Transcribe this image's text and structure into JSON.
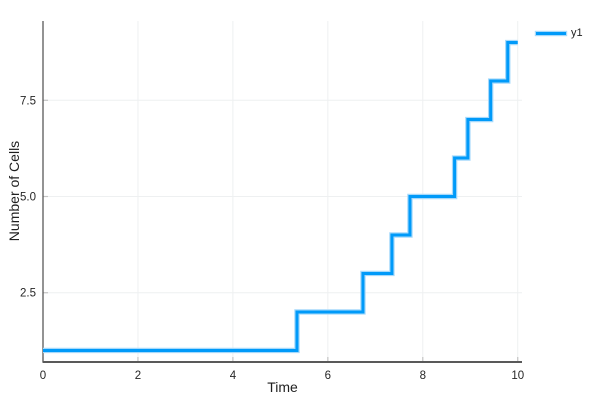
{
  "chart_data": {
    "type": "line",
    "subtype": "step-post",
    "title": "",
    "xlabel": "Time",
    "ylabel": "Number of Cells",
    "series": [
      {
        "name": "y1",
        "color": "#009af9",
        "halo_color": "#a6d9fb",
        "x": [
          0,
          5.35,
          6.74,
          7.35,
          7.73,
          8.67,
          8.95,
          9.43,
          9.79,
          10
        ],
        "y": [
          1,
          2,
          3,
          4,
          5,
          6,
          7,
          8,
          9,
          9
        ]
      }
    ],
    "xlim": [
      0,
      10.09
    ],
    "ylim": [
      0.7,
      9.56
    ],
    "xticks": [
      0,
      2,
      4,
      6,
      8,
      10
    ],
    "xtick_labels": [
      "0",
      "2",
      "4",
      "6",
      "8",
      "10"
    ],
    "yticks": [
      2.5,
      5.0,
      7.5
    ],
    "ytick_labels": [
      "2.5",
      "5.0",
      "7.5"
    ],
    "grid": true,
    "legend_position": "outside-top-right",
    "colors": {
      "grid": "#eef0f1",
      "axis": "#595959",
      "tick_mark": "#c4c4c4",
      "tick_text": "#262626",
      "background": "#ffffff"
    }
  }
}
